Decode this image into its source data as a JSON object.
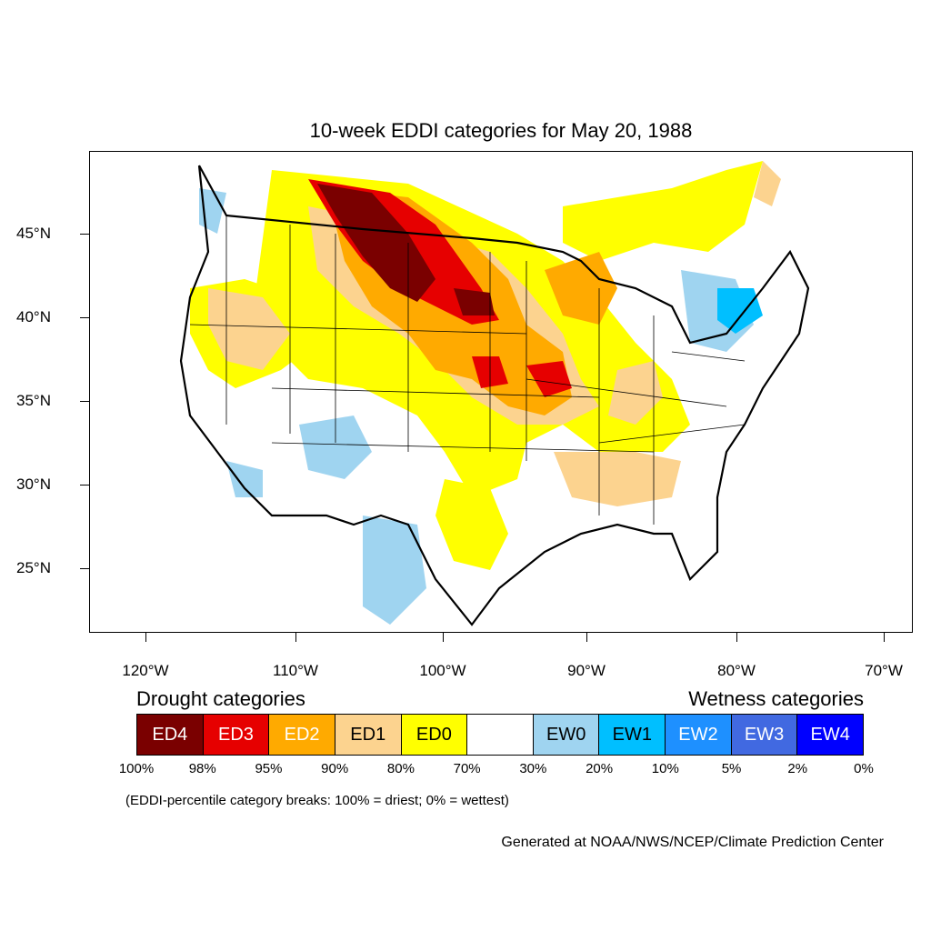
{
  "title": "10-week EDDI categories for May 20, 1988",
  "lat_labels": [
    "45°N",
    "40°N",
    "35°N",
    "30°N",
    "25°N"
  ],
  "lon_labels": [
    "120°W",
    "110°W",
    "100°W",
    "90°W",
    "80°W",
    "70°W"
  ],
  "legend": {
    "drought_title": "Drought categories",
    "wetness_title": "Wetness categories",
    "categories": [
      {
        "label": "ED4",
        "color": "#7a0000",
        "text_color": "#ffffff"
      },
      {
        "label": "ED3",
        "color": "#e60000",
        "text_color": "#ffffff"
      },
      {
        "label": "ED2",
        "color": "#ffaa00",
        "text_color": "#ffffff"
      },
      {
        "label": "ED1",
        "color": "#fcd38f",
        "text_color": "#000000"
      },
      {
        "label": "ED0",
        "color": "#ffff00",
        "text_color": "#000000"
      },
      {
        "label": "",
        "color": "#ffffff",
        "text_color": "#000000"
      },
      {
        "label": "EW0",
        "color": "#9fd4f0",
        "text_color": "#000000"
      },
      {
        "label": "EW1",
        "color": "#00bfff",
        "text_color": "#000000"
      },
      {
        "label": "EW2",
        "color": "#1e90ff",
        "text_color": "#ffffff"
      },
      {
        "label": "EW3",
        "color": "#4169e1",
        "text_color": "#ffffff"
      },
      {
        "label": "EW4",
        "color": "#0000ff",
        "text_color": "#ffffff"
      }
    ],
    "breaks": [
      "100%",
      "98%",
      "95%",
      "90%",
      "80%",
      "70%",
      "30%",
      "20%",
      "10%",
      "5%",
      "2%",
      "0%"
    ]
  },
  "note": "(EDDI-percentile category breaks: 100% = driest; 0% = wettest)",
  "credit": "Generated at NOAA/NWS/NCEP/Climate Prediction Center"
}
